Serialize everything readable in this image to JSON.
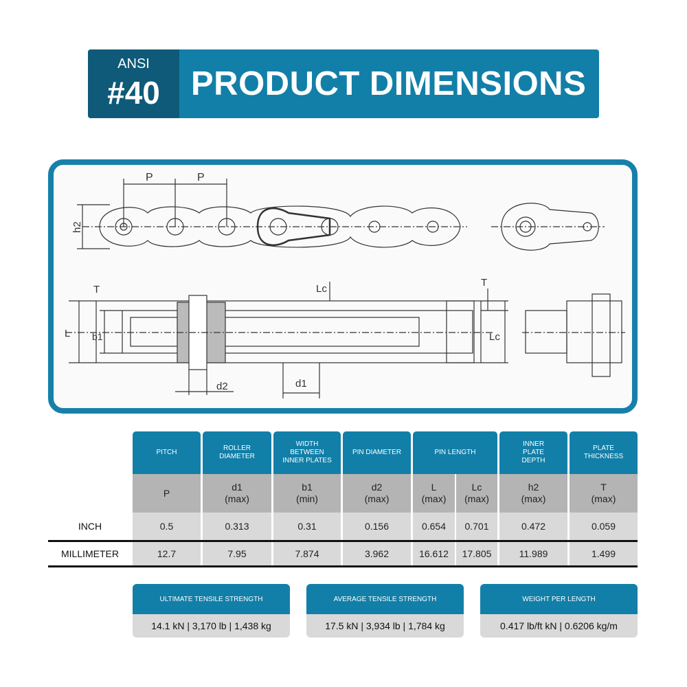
{
  "banner": {
    "ansi": "ANSI",
    "number": "#40",
    "title": "PRODUCT DIMENSIONS"
  },
  "diagram": {
    "labels": {
      "pitch": "P",
      "h2": "h2",
      "T": "T",
      "L": "L",
      "b1": "b1",
      "Lc": "Lc",
      "d2": "d2",
      "d1": "d1"
    }
  },
  "table": {
    "headers": [
      "PITCH",
      "ROLLER DIAMETER",
      "WIDTH BETWEEN INNER PLATES",
      "PIN DIAMETER",
      "PIN LENGTH",
      "INNER PLATE DEPTH",
      "PLATE THICKNESS"
    ],
    "symbols": [
      [
        "P",
        ""
      ],
      [
        "d1",
        "(max)"
      ],
      [
        "b1",
        "(min)"
      ],
      [
        "d2",
        "(max)"
      ],
      [
        "L",
        "(max)"
      ],
      [
        "Lc",
        "(max)"
      ],
      [
        "h2",
        "(max)"
      ],
      [
        "T",
        "(max)"
      ]
    ],
    "rows": [
      {
        "label": "INCH",
        "values": [
          "0.5",
          "0.313",
          "0.31",
          "0.156",
          "0.654",
          "0.701",
          "0.472",
          "0.059"
        ]
      },
      {
        "label": "MILLIMETER",
        "values": [
          "12.7",
          "7.95",
          "7.874",
          "3.962",
          "16.612",
          "17.805",
          "11.989",
          "1.499"
        ]
      }
    ]
  },
  "specs": [
    {
      "title": "ULTIMATE TENSILE STRENGTH",
      "value": "14.1 kN | 3,170 lb | 1,438 kg"
    },
    {
      "title": "AVERAGE TENSILE STRENGTH",
      "value": "17.5 kN | 3,934 lb | 1,784 kg"
    },
    {
      "title": "WEIGHT PER LENGTH",
      "value": "0.417 lb/ft kN | 0.6206 kg/m"
    }
  ],
  "colors": {
    "primary": "#127fa8",
    "dark": "#0e5a78",
    "subheader": "#b4b4b4",
    "row": "#d9d9d9"
  }
}
